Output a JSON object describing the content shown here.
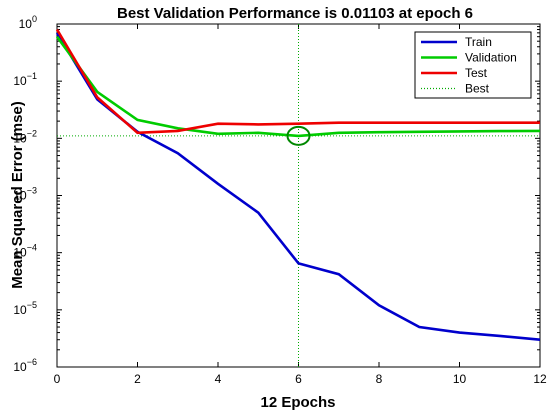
{
  "chart_data": {
    "type": "line",
    "title": "Best Validation Performance is 0.01103 at epoch 6",
    "xlabel": "12 Epochs",
    "ylabel": "Mean Squared Error  (mse)",
    "x": [
      0,
      1,
      2,
      3,
      4,
      5,
      6,
      7,
      8,
      9,
      10,
      11,
      12
    ],
    "xlim": [
      0,
      12
    ],
    "ylim": [
      1e-06,
      1
    ],
    "yscale": "log",
    "xticks": [
      "0",
      "2",
      "4",
      "6",
      "8",
      "10",
      "12"
    ],
    "yticks": [
      {
        "base": "10",
        "exp": "0"
      },
      {
        "base": "10",
        "exp": "−1"
      },
      {
        "base": "10",
        "exp": "−2"
      },
      {
        "base": "10",
        "exp": "−3"
      },
      {
        "base": "10",
        "exp": "−4"
      },
      {
        "base": "10",
        "exp": "−5"
      },
      {
        "base": "10",
        "exp": "−6"
      }
    ],
    "series": [
      {
        "name": "Train",
        "color": "#0000cc",
        "values": [
          0.7,
          0.048,
          0.013,
          0.0055,
          0.0016,
          0.0005,
          6.5e-05,
          4.2e-05,
          1.2e-05,
          5e-06,
          4e-06,
          3.5e-06,
          3e-06
        ]
      },
      {
        "name": "Validation",
        "color": "#00cc00",
        "values": [
          0.6,
          0.065,
          0.021,
          0.015,
          0.012,
          0.0125,
          0.01103,
          0.0125,
          0.0128,
          0.013,
          0.0132,
          0.0134,
          0.0135
        ]
      },
      {
        "name": "Test",
        "color": "#ee0000",
        "values": [
          0.8,
          0.052,
          0.0125,
          0.0135,
          0.018,
          0.0175,
          0.018,
          0.0188,
          0.0188,
          0.0188,
          0.0188,
          0.0188,
          0.0188
        ]
      }
    ],
    "best": {
      "name": "Best",
      "color": "#00aa00",
      "epoch": 6,
      "value": 0.01103
    },
    "legend_position": "top-right",
    "grid": false
  }
}
